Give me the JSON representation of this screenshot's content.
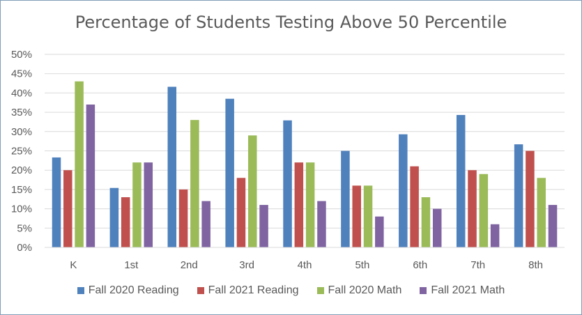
{
  "chart_data": {
    "type": "bar",
    "title": "Percentage of Students Testing Above 50 Percentile",
    "categories": [
      "K",
      "1st",
      "2nd",
      "3rd",
      "4th",
      "5th",
      "6th",
      "7th",
      "8th"
    ],
    "series": [
      {
        "name": "Fall 2020 Reading",
        "color": "#4f81bd",
        "values": [
          23.3,
          15.4,
          41.6,
          38.5,
          32.9,
          25,
          29.3,
          34.3,
          26.7
        ]
      },
      {
        "name": "Fall 2021 Reading",
        "color": "#c0504d",
        "values": [
          20,
          13,
          15,
          18,
          22,
          16,
          21,
          20,
          25
        ]
      },
      {
        "name": "Fall 2020 Math",
        "color": "#9bbb59",
        "values": [
          43,
          22,
          33,
          29,
          22,
          16,
          13,
          19,
          18
        ]
      },
      {
        "name": "Fall 2021 Math",
        "color": "#8064a2",
        "values": [
          37,
          22,
          12,
          11,
          12,
          8,
          10,
          6,
          11
        ]
      }
    ],
    "y_ticks": [
      "0%",
      "5%",
      "10%",
      "15%",
      "20%",
      "25%",
      "30%",
      "35%",
      "40%",
      "45%",
      "50%"
    ],
    "ylim": [
      0,
      50
    ],
    "grid": true,
    "legend_position": "bottom"
  }
}
